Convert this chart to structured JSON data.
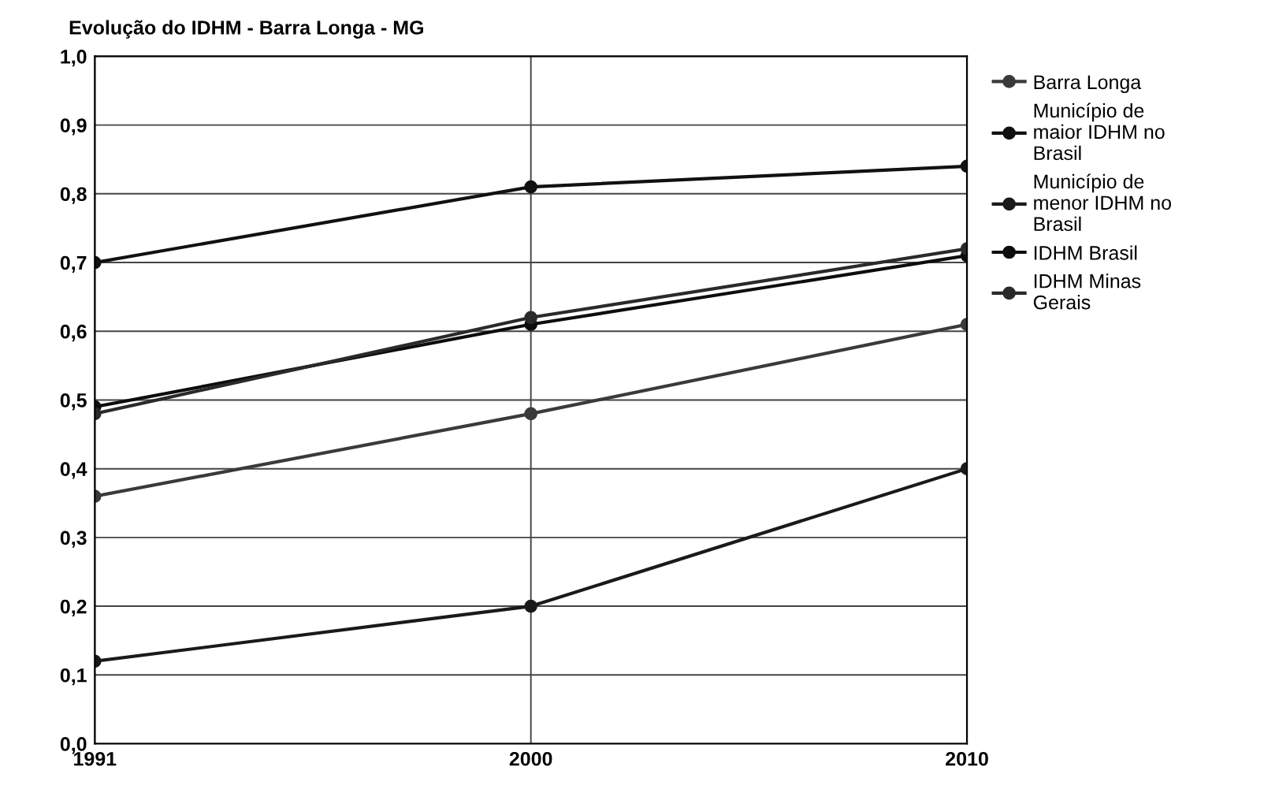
{
  "chart_data": {
    "type": "line",
    "title": "Evolução do IDHM - Barra Longa - MG",
    "categories": [
      "1991",
      "2000",
      "2010"
    ],
    "series": [
      {
        "name": "Barra Longa",
        "color": "#3a3a3a",
        "values": [
          0.36,
          0.48,
          0.61
        ]
      },
      {
        "name": "Município de maior IDHM no Brasil",
        "color": "#111111",
        "values": [
          0.7,
          0.81,
          0.84
        ]
      },
      {
        "name": "Município de menor IDHM no Brasil",
        "color": "#1a1a1a",
        "values": [
          0.12,
          0.2,
          0.4
        ]
      },
      {
        "name": "IDHM Brasil",
        "color": "#0d0d0d",
        "values": [
          0.49,
          0.61,
          0.71
        ]
      },
      {
        "name": "IDHM Minas Gerais",
        "color": "#2a2a2a",
        "values": [
          0.48,
          0.62,
          0.72
        ]
      }
    ],
    "ylim": [
      0,
      1
    ],
    "yticks": [
      {
        "value": 0,
        "label": "0,0"
      },
      {
        "value": 0.1,
        "label": "0,1"
      },
      {
        "value": 0.2,
        "label": "0,2"
      },
      {
        "value": 0.3,
        "label": "0,3"
      },
      {
        "value": 0.4,
        "label": "0,4"
      },
      {
        "value": 0.5,
        "label": "0,5"
      },
      {
        "value": 0.6,
        "label": "0,6"
      },
      {
        "value": 0.7,
        "label": "0,7"
      },
      {
        "value": 0.8,
        "label": "0,8"
      },
      {
        "value": 0.9,
        "label": "0,9"
      },
      {
        "value": 1,
        "label": "1,0"
      }
    ],
    "grid": true,
    "legend": "top right",
    "marker": "circle",
    "line_style": "solid"
  }
}
